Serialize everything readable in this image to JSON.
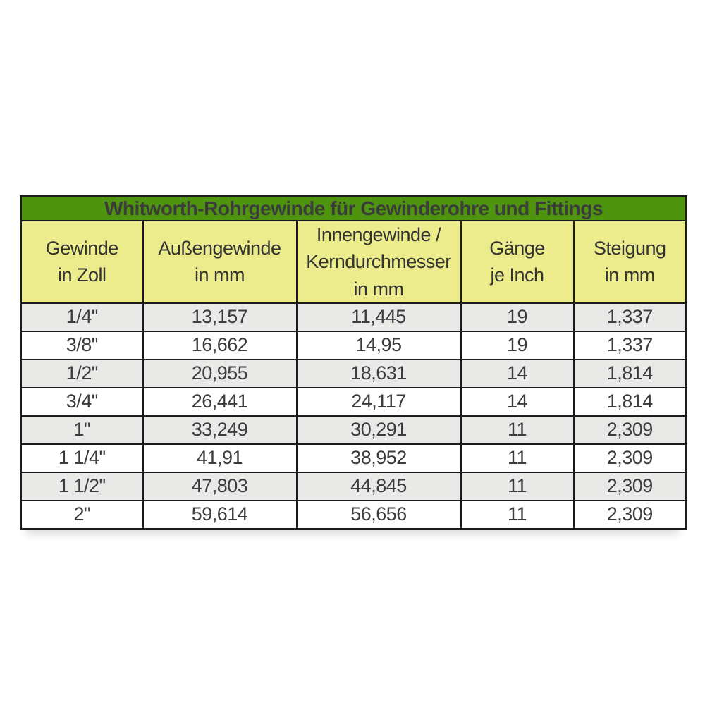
{
  "chart_data": {
    "type": "table",
    "title": "Whitworth-Rohrgewinde für Gewinderohre und Fittings",
    "columns": [
      "Gewinde\nin Zoll",
      "Außengewinde\nin mm",
      "Innengewinde /\nKerndurchmesser\nin mm",
      "Gänge\nje Inch",
      "Steigung\nin mm"
    ],
    "rows": [
      [
        "1/4\"",
        "13,157",
        "11,445",
        "19",
        "1,337"
      ],
      [
        "3/8\"",
        "16,662",
        "14,95",
        "19",
        "1,337"
      ],
      [
        "1/2\"",
        "20,955",
        "18,631",
        "14",
        "1,814"
      ],
      [
        "3/4\"",
        "26,441",
        "24,117",
        "14",
        "1,814"
      ],
      [
        "1\"",
        "33,249",
        "30,291",
        "11",
        "2,309"
      ],
      [
        "1 1/4\"",
        "41,91",
        "38,952",
        "11",
        "2,309"
      ],
      [
        "1 1/2\"",
        "47,803",
        "44,845",
        "11",
        "2,309"
      ],
      [
        "2\"",
        "59,614",
        "56,656",
        "11",
        "2,309"
      ]
    ],
    "layout": {
      "row_shading": "alternating, first data row shaded",
      "legend_position": "none",
      "grid": "full borders"
    }
  },
  "colors": {
    "title_bg": "#4E940E",
    "title_text": "#F3FBEA",
    "header_bg": "#ECEC8C",
    "row_shaded_bg": "#E9E9E7",
    "row_plain_bg": "#FFFFFF",
    "border": "#1B1B1B",
    "text": "#3C3C3C"
  }
}
